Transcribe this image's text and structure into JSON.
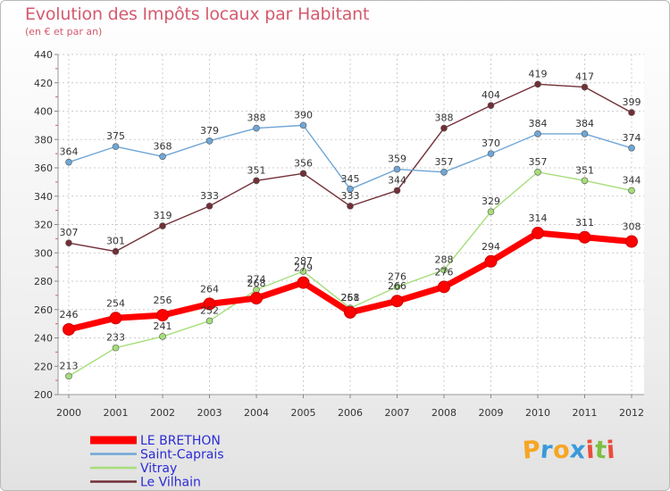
{
  "chart_data": {
    "type": "line",
    "title": "Evolution des Impôts locaux par Habitant",
    "subtitle": "(en € et par an)",
    "xlabel": "",
    "ylabel": "",
    "categories": [
      "2000",
      "2001",
      "2002",
      "2003",
      "2004",
      "2005",
      "2006",
      "2007",
      "2008",
      "2009",
      "2010",
      "2011",
      "2012"
    ],
    "ylim": [
      200,
      440
    ],
    "yticks": [
      200,
      220,
      240,
      260,
      280,
      300,
      320,
      340,
      360,
      380,
      400,
      420,
      440
    ],
    "grid": true,
    "legend_position": "bottom-left",
    "series": [
      {
        "name": "Le Vilhain",
        "color": "#722f37",
        "values": [
          307,
          301,
          319,
          333,
          351,
          356,
          333,
          344,
          388,
          404,
          419,
          417,
          399
        ]
      },
      {
        "name": "Saint-Caprais",
        "color": "#6fa6d6",
        "values": [
          364,
          375,
          368,
          379,
          388,
          390,
          345,
          359,
          357,
          370,
          384,
          384,
          374
        ]
      },
      {
        "name": "Vitray",
        "color": "#a6de7a",
        "values": [
          213,
          233,
          241,
          252,
          274,
          287,
          261,
          276,
          288,
          329,
          357,
          351,
          344
        ]
      },
      {
        "name": "LE BRETHON",
        "color": "#ff0000",
        "values": [
          246,
          254,
          256,
          264,
          268,
          279,
          258,
          266,
          276,
          294,
          314,
          311,
          308
        ]
      }
    ],
    "legend_order": [
      "LE BRETHON",
      "Saint-Caprais",
      "Vitray",
      "Le Vilhain"
    ]
  },
  "logo": {
    "letters": [
      "P",
      "r",
      "o",
      "x",
      "i",
      "t",
      "i"
    ],
    "colors": [
      "#f5a623",
      "#3a9ad9",
      "#f5a623",
      "#3a9ad9",
      "#e94e3c",
      "#7cc142",
      "#e94e3c"
    ]
  }
}
